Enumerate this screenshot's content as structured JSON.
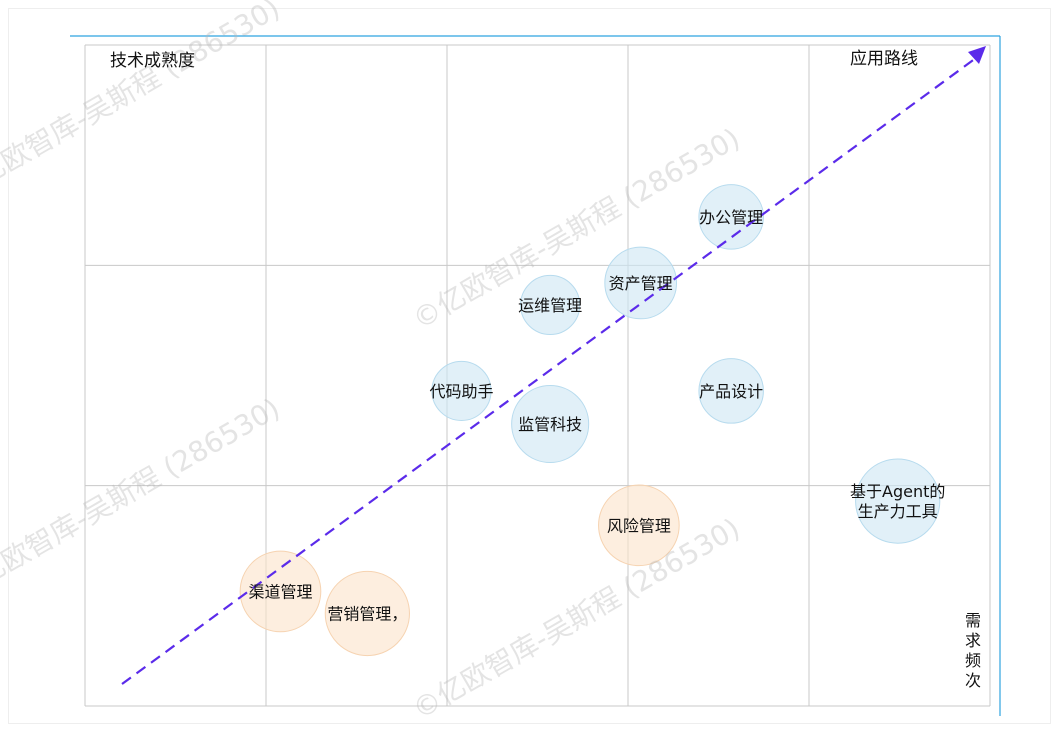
{
  "chart_data": {
    "type": "bubble-matrix",
    "y_axis_title": "技术成熟度",
    "x_axis_title": "需求频次",
    "diagonal_label": "应用路线",
    "grid": {
      "columns": 5,
      "rows": 3
    },
    "bubbles": [
      {
        "label": "渠道管理",
        "x": 1.08,
        "y": 0.52,
        "size": 0.45,
        "group": "orange"
      },
      {
        "label": "营销管理，",
        "x": 1.56,
        "y": 0.42,
        "size": 0.47,
        "group": "orange"
      },
      {
        "label": "风险管理",
        "x": 3.06,
        "y": 0.82,
        "size": 0.45,
        "group": "orange"
      },
      {
        "label": "代码助手",
        "x": 2.08,
        "y": 1.43,
        "size": 0.33,
        "group": "blue"
      },
      {
        "label": "监管科技",
        "x": 2.57,
        "y": 1.28,
        "size": 0.43,
        "group": "blue"
      },
      {
        "label": "运维管理",
        "x": 2.57,
        "y": 1.82,
        "size": 0.33,
        "group": "blue"
      },
      {
        "label": "资产管理",
        "x": 3.07,
        "y": 1.92,
        "size": 0.4,
        "group": "blue"
      },
      {
        "label": "产品设计",
        "x": 3.57,
        "y": 1.43,
        "size": 0.36,
        "group": "blue"
      },
      {
        "label": "办公管理",
        "x": 3.57,
        "y": 2.22,
        "size": 0.36,
        "group": "blue"
      },
      {
        "label": "基于Agent的\n生产力工具",
        "x": 4.49,
        "y": 0.93,
        "size": 0.47,
        "group": "blue"
      }
    ],
    "colors": {
      "blue_fill": "#cfe7f4",
      "blue_stroke": "#b7dbee",
      "orange_fill": "#fbe3cc",
      "orange_stroke": "#f6d3b1",
      "trend_line": "#5b2bea",
      "grid": "#c8c8c8",
      "frame": "#2fa3e0"
    },
    "watermarks": [
      "©亿欧智库-吴斯程 (286530)",
      "©亿欧智库-吴斯程 (286530)",
      "©亿欧智库-吴斯程 (286530)",
      "©亿欧智库-吴斯程 (286530)"
    ]
  }
}
